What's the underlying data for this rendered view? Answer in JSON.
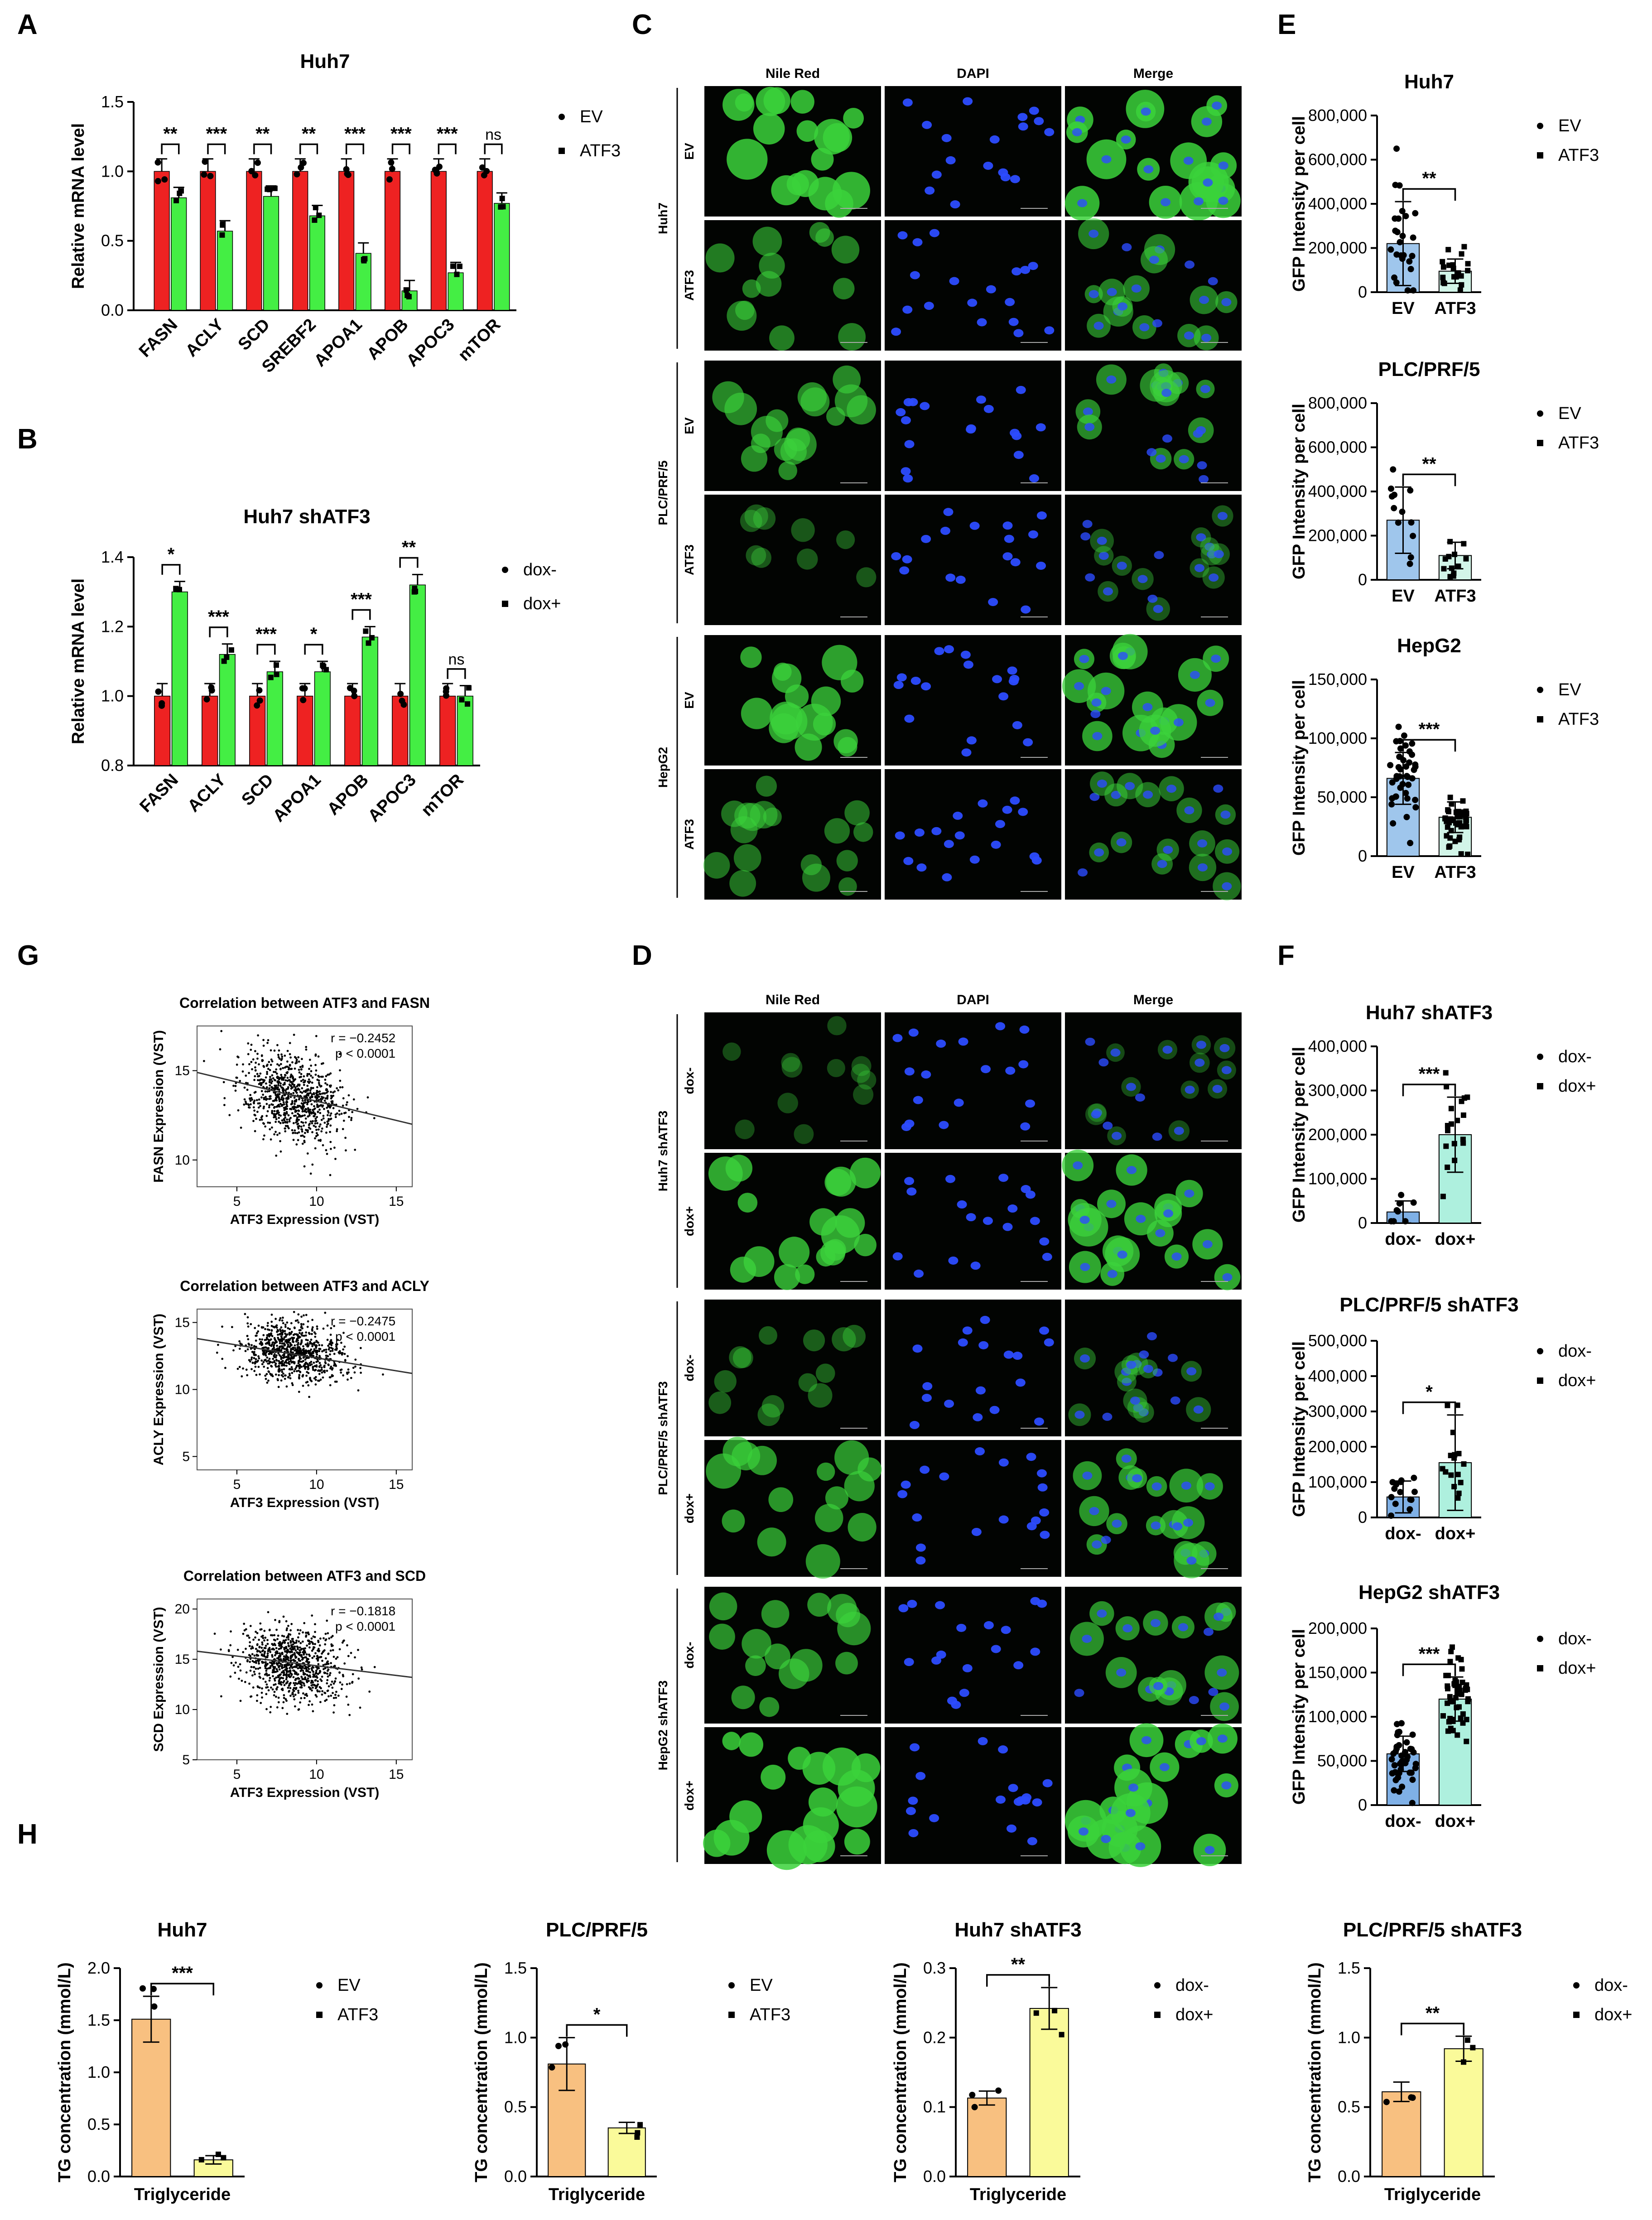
{
  "panel_letters": [
    "A",
    "B",
    "C",
    "D",
    "E",
    "F",
    "G",
    "H"
  ],
  "colors": {
    "ev_red": "#ee2222",
    "atf3_green": "#44ee44",
    "e_blue": "#9fc6ec",
    "e_light": "#d2f5e8",
    "f_blue": "#7fb0e6",
    "f_teal": "#aef0de",
    "tg_orange": "#f8c080",
    "tg_yellow": "#fafa9a"
  },
  "chart_data": [
    {
      "id": "A",
      "type": "bar",
      "title": "Huh7",
      "ylabel": "Relative mRNA level",
      "ylim": [
        0,
        1.5
      ],
      "yticks": [
        "0.0",
        "0.5",
        "1.0",
        "1.5"
      ],
      "categories": [
        "FASN",
        "ACLY",
        "SCD",
        "SREBF2",
        "APOA1",
        "APOB",
        "APOC3",
        "mTOR"
      ],
      "series": [
        {
          "name": "EV",
          "values": [
            1.0,
            1.0,
            1.0,
            1.0,
            1.0,
            1.0,
            1.0,
            1.0
          ]
        },
        {
          "name": "ATF3",
          "values": [
            0.81,
            0.57,
            0.82,
            0.68,
            0.41,
            0.14,
            0.27,
            0.77
          ]
        }
      ],
      "significance": [
        "**",
        "***",
        "**",
        "**",
        "***",
        "***",
        "***",
        "ns"
      ],
      "legend": [
        "EV",
        "ATF3"
      ]
    },
    {
      "id": "B",
      "type": "bar",
      "title": "Huh7 shATF3",
      "ylabel": "Relative mRNA level",
      "ylim": [
        0.8,
        1.4
      ],
      "yticks": [
        "0.8",
        "1.0",
        "1.2",
        "1.4"
      ],
      "categories": [
        "FASN",
        "ACLY",
        "SCD",
        "APOA1",
        "APOB",
        "APOC3",
        "mTOR"
      ],
      "series": [
        {
          "name": "dox-",
          "values": [
            1.0,
            1.0,
            1.0,
            1.0,
            1.0,
            1.0,
            1.0
          ]
        },
        {
          "name": "dox+",
          "values": [
            1.3,
            1.12,
            1.07,
            1.07,
            1.17,
            1.32,
            1.0
          ]
        }
      ],
      "significance": [
        "*",
        "***",
        "***",
        "*",
        "***",
        "**",
        "ns"
      ],
      "legend": [
        "dox-",
        "dox+"
      ]
    },
    {
      "id": "E1",
      "type": "bar",
      "title": "Huh7",
      "ylabel": "GFP Intensity per cell",
      "ylim": [
        0,
        800000
      ],
      "yticks": [
        "0",
        "200,000",
        "400,000",
        "600,000",
        "800,000"
      ],
      "categories": [
        "EV",
        "ATF3"
      ],
      "values": [
        220000,
        95000
      ],
      "errors": [
        190000,
        55000
      ],
      "significance": "**",
      "legend": [
        "EV",
        "ATF3"
      ]
    },
    {
      "id": "E2",
      "type": "bar",
      "title": "PLC/PRF/5",
      "ylabel": "GFP Intensity per cell",
      "ylim": [
        0,
        800000
      ],
      "yticks": [
        "0",
        "200,000",
        "400,000",
        "600,000",
        "800,000"
      ],
      "categories": [
        "EV",
        "ATF3"
      ],
      "values": [
        270000,
        110000
      ],
      "errors": [
        150000,
        60000
      ],
      "significance": "**",
      "legend": [
        "EV",
        "ATF3"
      ]
    },
    {
      "id": "E3",
      "type": "bar",
      "title": "HepG2",
      "ylabel": "GFP Intensity per cell",
      "ylim": [
        0,
        150000
      ],
      "yticks": [
        "0",
        "50,000",
        "100,000",
        "150,000"
      ],
      "categories": [
        "EV",
        "ATF3"
      ],
      "values": [
        66000,
        33000
      ],
      "errors": [
        22000,
        13000
      ],
      "significance": "***",
      "legend": [
        "EV",
        "ATF3"
      ]
    },
    {
      "id": "F1",
      "type": "bar",
      "title": "Huh7 shATF3",
      "ylabel": "GFP Intensity per cell",
      "ylim": [
        0,
        400000
      ],
      "yticks": [
        "0",
        "100,000",
        "200,000",
        "300,000",
        "400,000"
      ],
      "categories": [
        "dox-",
        "dox+"
      ],
      "values": [
        25000,
        200000
      ],
      "errors": [
        25000,
        85000
      ],
      "significance": "***",
      "legend": [
        "dox-",
        "dox+"
      ]
    },
    {
      "id": "F2",
      "type": "bar",
      "title": "PLC/PRF/5 shATF3",
      "ylabel": "GFP Intensity per cell",
      "ylim": [
        0,
        500000
      ],
      "yticks": [
        "0",
        "100,000",
        "200,000",
        "300,000",
        "400,000",
        "500,000"
      ],
      "categories": [
        "dox-",
        "dox+"
      ],
      "values": [
        58000,
        155000
      ],
      "errors": [
        45000,
        135000
      ],
      "significance": "*",
      "legend": [
        "dox-",
        "dox+"
      ]
    },
    {
      "id": "F3",
      "type": "bar",
      "title": "HepG2 shATF3",
      "ylabel": "GFP Intensity per cell",
      "ylim": [
        0,
        200000
      ],
      "yticks": [
        "0",
        "50,000",
        "100,000",
        "150,000",
        "200,000"
      ],
      "categories": [
        "dox-",
        "dox+"
      ],
      "values": [
        58000,
        120000
      ],
      "errors": [
        20000,
        25000
      ],
      "significance": "***",
      "legend": [
        "dox-",
        "dox+"
      ]
    },
    {
      "id": "G1",
      "type": "scatter",
      "title": "Correlation between ATF3 and FASN",
      "xlabel": "ATF3 Expression (VST)",
      "ylabel": "FASN Expression (VST)",
      "xlim": [
        2.5,
        16
      ],
      "ylim": [
        8.5,
        17.5
      ],
      "xticks": [
        5,
        10,
        15
      ],
      "yticks": [
        10,
        15
      ],
      "stat_r": "r = −0.2452",
      "stat_p": "p < 0.0001",
      "center": [
        8.5,
        13.5
      ],
      "spread": [
        1.6,
        1.2
      ],
      "fit": [
        [
          2.5,
          14.9
        ],
        [
          16,
          12.0
        ]
      ]
    },
    {
      "id": "G2",
      "type": "scatter",
      "title": "Correlation between ATF3 and ACLY",
      "xlabel": "ATF3 Expression (VST)",
      "ylabel": "ACLY Expression (VST)",
      "xlim": [
        2.5,
        16
      ],
      "ylim": [
        4,
        16
      ],
      "xticks": [
        5,
        10,
        15
      ],
      "yticks": [
        5,
        10,
        15
      ],
      "stat_r": "r = −0.2475",
      "stat_p": "p < 0.0001",
      "center": [
        8.5,
        12.8
      ],
      "spread": [
        1.6,
        1.0
      ],
      "fit": [
        [
          2.5,
          13.8
        ],
        [
          16,
          11.2
        ]
      ]
    },
    {
      "id": "G3",
      "type": "scatter",
      "title": "Correlation between ATF3 and SCD",
      "xlabel": "ATF3 Expression (VST)",
      "ylabel": "SCD Expression (VST)",
      "xlim": [
        2.5,
        16
      ],
      "ylim": [
        5,
        21
      ],
      "xticks": [
        5,
        10,
        15
      ],
      "yticks": [
        5,
        10,
        15,
        20
      ],
      "stat_r": "r = −0.1818",
      "stat_p": "p < 0.0001",
      "center": [
        8.5,
        14.5
      ],
      "spread": [
        1.6,
        1.8
      ],
      "fit": [
        [
          2.5,
          15.8
        ],
        [
          16,
          13.2
        ]
      ]
    },
    {
      "id": "H1",
      "type": "bar",
      "title": "Huh7",
      "ylabel": "TG concentration (mmol/L)",
      "xlabel": "Triglyceride",
      "ylim": [
        0,
        2.0
      ],
      "yticks": [
        "0.0",
        "0.5",
        "1.0",
        "1.5",
        "2.0"
      ],
      "categories": [
        "EV",
        "ATF3"
      ],
      "values": [
        1.51,
        0.16
      ],
      "errors": [
        0.22,
        0.04
      ],
      "significance": "***",
      "legend": [
        "EV",
        "ATF3"
      ]
    },
    {
      "id": "H2",
      "type": "bar",
      "title": "PLC/PRF/5",
      "ylabel": "TG concentration (mmol/L)",
      "xlabel": "Triglyceride",
      "ylim": [
        0,
        1.5
      ],
      "yticks": [
        "0.0",
        "0.5",
        "1.0",
        "1.5"
      ],
      "categories": [
        "EV",
        "ATF3"
      ],
      "values": [
        0.81,
        0.35
      ],
      "errors": [
        0.19,
        0.04
      ],
      "significance": "*",
      "legend": [
        "EV",
        "ATF3"
      ]
    },
    {
      "id": "H3",
      "type": "bar",
      "title": "Huh7 shATF3",
      "ylabel": "TG concentration (mmol/L)",
      "xlabel": "Triglyceride",
      "ylim": [
        0,
        0.3
      ],
      "yticks": [
        "0.0",
        "0.1",
        "0.2",
        "0.3"
      ],
      "categories": [
        "dox-",
        "dox+"
      ],
      "values": [
        0.113,
        0.242
      ],
      "errors": [
        0.01,
        0.03
      ],
      "significance": "**",
      "legend": [
        "dox-",
        "dox+"
      ]
    },
    {
      "id": "H4",
      "type": "bar",
      "title": "PLC/PRF/5 shATF3",
      "ylabel": "TG concentration (mmol/L)",
      "xlabel": "Triglyceride",
      "ylim": [
        0,
        1.5
      ],
      "yticks": [
        "0.0",
        "0.5",
        "1.0",
        "1.5"
      ],
      "categories": [
        "dox-",
        "dox+"
      ],
      "values": [
        0.61,
        0.92
      ],
      "errors": [
        0.07,
        0.09
      ],
      "significance": "**",
      "legend": [
        "dox-",
        "dox+"
      ]
    }
  ],
  "micrographs": [
    {
      "id": "C",
      "columns": [
        "Nile Red",
        "DAPI",
        "Merge"
      ],
      "groups": [
        {
          "label": "Huh7",
          "rows": [
            "EV",
            "ATF3"
          ],
          "green": [
            1.0,
            0.55
          ]
        },
        {
          "label": "PLC/PRF/5",
          "rows": [
            "EV",
            "ATF3"
          ],
          "green": [
            0.65,
            0.25
          ]
        },
        {
          "label": "HepG2",
          "rows": [
            "EV",
            "ATF3"
          ],
          "green": [
            0.85,
            0.45
          ]
        }
      ]
    },
    {
      "id": "D",
      "columns": [
        "Nile Red",
        "DAPI",
        "Merge"
      ],
      "groups": [
        {
          "label": "Huh7 shATF3",
          "rows": [
            "dox-",
            "dox+"
          ],
          "green": [
            0.15,
            0.9
          ]
        },
        {
          "label": "PLC/PRF/5 shATF3",
          "rows": [
            "dox-",
            "dox+"
          ],
          "green": [
            0.3,
            0.75
          ]
        },
        {
          "label": "HepG2 shATF3",
          "rows": [
            "dox-",
            "dox+"
          ],
          "green": [
            0.7,
            1.0
          ]
        }
      ]
    }
  ]
}
